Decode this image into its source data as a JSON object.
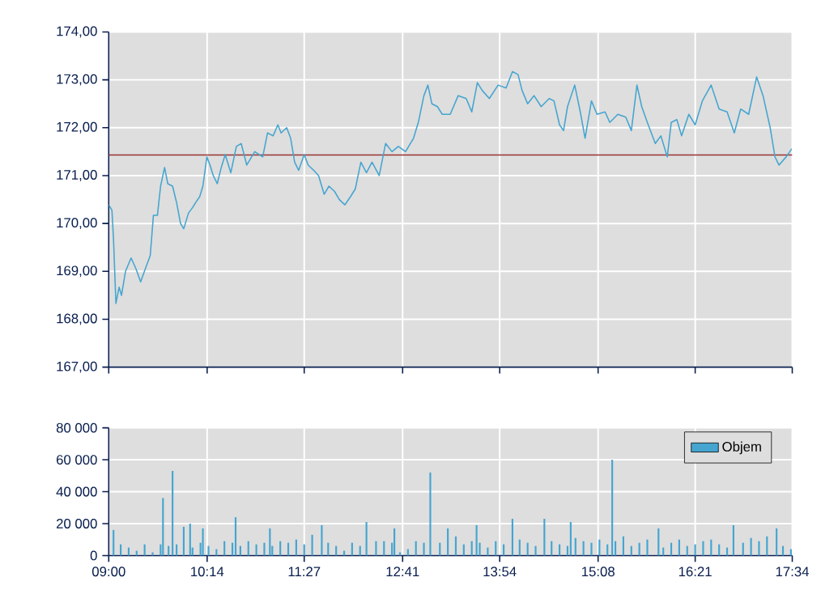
{
  "chart_data": [
    {
      "type": "line",
      "grid": true,
      "tick_labels": "y",
      "xlim": [
        9,
        17.5667
      ],
      "xticks": [
        {
          "value": 9,
          "label": null
        },
        {
          "value": 10.2333,
          "label": null
        },
        {
          "value": 11.45,
          "label": null
        },
        {
          "value": 12.6833,
          "label": null
        },
        {
          "value": 13.9,
          "label": null
        },
        {
          "value": 15.1333,
          "label": null
        },
        {
          "value": 16.35,
          "label": null
        },
        {
          "value": 17.5667,
          "label": null
        }
      ],
      "ylim": [
        167,
        174
      ],
      "yticks": [
        {
          "value": 167,
          "label": "167,00"
        },
        {
          "value": 168,
          "label": "168,00"
        },
        {
          "value": 169,
          "label": "169,00"
        },
        {
          "value": 170,
          "label": "170,00"
        },
        {
          "value": 171,
          "label": "171,00"
        },
        {
          "value": 172,
          "label": "172,00"
        },
        {
          "value": 173,
          "label": "173,00"
        },
        {
          "value": 174,
          "label": "174,00"
        }
      ],
      "ref_lines": [
        {
          "axis": "y",
          "value": 171.43,
          "color": "#993333"
        }
      ],
      "series": [
        {
          "color": "#45a5d0",
          "x": [
            9.0,
            9.04,
            9.06,
            9.09,
            9.13,
            9.16,
            9.21,
            9.28,
            9.34,
            9.4,
            9.46,
            9.52,
            9.56,
            9.61,
            9.65,
            9.7,
            9.74,
            9.8,
            9.85,
            9.9,
            9.94,
            10.0,
            10.05,
            10.09,
            10.14,
            10.18,
            10.23,
            10.27,
            10.31,
            10.36,
            10.41,
            10.46,
            10.53,
            10.6,
            10.66,
            10.73,
            10.83,
            10.93,
            10.99,
            11.06,
            11.12,
            11.16,
            11.23,
            11.28,
            11.33,
            11.38,
            11.45,
            11.5,
            11.57,
            11.63,
            11.7,
            11.76,
            11.83,
            11.89,
            11.96,
            12.03,
            12.09,
            12.16,
            12.23,
            12.3,
            12.39,
            12.47,
            12.55,
            12.63,
            12.72,
            12.82,
            12.88,
            12.95,
            13.0,
            13.05,
            13.12,
            13.18,
            13.28,
            13.38,
            13.48,
            13.55,
            13.62,
            13.68,
            13.77,
            13.88,
            13.98,
            14.06,
            14.13,
            14.18,
            14.25,
            14.33,
            14.42,
            14.52,
            14.58,
            14.65,
            14.7,
            14.75,
            14.84,
            14.91,
            14.97,
            15.05,
            15.12,
            15.22,
            15.28,
            15.38,
            15.48,
            15.55,
            15.62,
            15.68,
            15.75,
            15.85,
            15.92,
            16.0,
            16.05,
            16.12,
            16.18,
            16.27,
            16.35,
            16.44,
            16.55,
            16.65,
            16.75,
            16.84,
            16.92,
            17.02,
            17.12,
            17.2,
            17.29,
            17.35,
            17.4,
            17.49,
            17.56
          ],
          "values": [
            170.39,
            170.28,
            169.67,
            168.33,
            168.67,
            168.5,
            169.0,
            169.28,
            169.06,
            168.78,
            169.06,
            169.33,
            170.17,
            170.17,
            170.78,
            171.17,
            170.83,
            170.78,
            170.44,
            170.0,
            169.89,
            170.22,
            170.33,
            170.44,
            170.56,
            170.78,
            171.39,
            171.22,
            171.0,
            170.83,
            171.17,
            171.44,
            171.06,
            171.61,
            171.67,
            171.22,
            171.5,
            171.39,
            171.89,
            171.83,
            172.06,
            171.89,
            172.0,
            171.78,
            171.28,
            171.11,
            171.44,
            171.22,
            171.11,
            171.0,
            170.61,
            170.78,
            170.67,
            170.5,
            170.39,
            170.56,
            170.72,
            171.28,
            171.06,
            171.28,
            171.0,
            171.67,
            171.5,
            171.61,
            171.5,
            171.78,
            172.11,
            172.67,
            172.89,
            172.5,
            172.44,
            172.28,
            172.28,
            172.67,
            172.61,
            172.33,
            172.94,
            172.78,
            172.61,
            172.89,
            172.83,
            173.17,
            173.11,
            172.78,
            172.5,
            172.67,
            172.44,
            172.61,
            172.56,
            172.06,
            171.94,
            172.44,
            172.89,
            172.33,
            171.78,
            172.56,
            172.28,
            172.33,
            172.11,
            172.28,
            172.22,
            171.94,
            172.89,
            172.44,
            172.11,
            171.67,
            171.83,
            171.39,
            172.11,
            172.17,
            171.83,
            172.28,
            172.06,
            172.56,
            172.89,
            172.39,
            172.33,
            171.89,
            172.39,
            172.28,
            173.06,
            172.67,
            172.0,
            171.39,
            171.22,
            171.39,
            171.56
          ]
        }
      ]
    },
    {
      "type": "bar",
      "grid": true,
      "legend": "top right",
      "xlim": [
        9,
        17.5667
      ],
      "xticks": [
        {
          "value": 9,
          "label": "09:00"
        },
        {
          "value": 10.2333,
          "label": "10:14"
        },
        {
          "value": 11.45,
          "label": "11:27"
        },
        {
          "value": 12.6833,
          "label": "12:41"
        },
        {
          "value": 13.9,
          "label": "13:54"
        },
        {
          "value": 15.1333,
          "label": "15:08"
        },
        {
          "value": 16.35,
          "label": "16:21"
        },
        {
          "value": 17.5667,
          "label": "17:34"
        }
      ],
      "ylim": [
        0,
        80000
      ],
      "yticks": [
        0,
        {
          "value": 20000,
          "label": "20 000"
        },
        {
          "value": 40000,
          "label": "40 000"
        },
        {
          "value": 60000,
          "label": "60 000"
        },
        {
          "value": 80000,
          "label": "80 000"
        }
      ],
      "series": [
        {
          "name": "Objem",
          "color": "#45a5d0",
          "x": [
            9.06,
            9.15,
            9.25,
            9.35,
            9.45,
            9.55,
            9.65,
            9.68,
            9.75,
            9.8,
            9.85,
            9.94,
            10.02,
            10.05,
            10.15,
            10.18,
            10.25,
            10.35,
            10.45,
            10.55,
            10.59,
            10.65,
            10.75,
            10.85,
            10.95,
            11.02,
            11.05,
            11.15,
            11.25,
            11.35,
            11.45,
            11.55,
            11.67,
            11.75,
            11.85,
            11.95,
            12.05,
            12.15,
            12.23,
            12.35,
            12.45,
            12.55,
            12.58,
            12.65,
            12.75,
            12.85,
            12.95,
            13.03,
            13.15,
            13.25,
            13.35,
            13.45,
            13.55,
            13.61,
            13.65,
            13.75,
            13.85,
            13.95,
            14.06,
            14.15,
            14.25,
            14.35,
            14.46,
            14.55,
            14.65,
            14.75,
            14.79,
            14.85,
            14.95,
            15.05,
            15.15,
            15.25,
            15.31,
            15.35,
            15.45,
            15.55,
            15.65,
            15.75,
            15.89,
            15.95,
            16.05,
            16.15,
            16.25,
            16.35,
            16.45,
            16.55,
            16.65,
            16.75,
            16.83,
            16.95,
            17.05,
            17.15,
            17.25,
            17.37,
            17.45,
            17.55
          ],
          "values": [
            16000,
            7000,
            5000,
            3000,
            7000,
            2000,
            7000,
            36000,
            6000,
            53000,
            7000,
            18000,
            20000,
            5000,
            8000,
            17000,
            6000,
            4000,
            9000,
            8000,
            24000,
            6000,
            9000,
            7000,
            8000,
            17000,
            6000,
            9000,
            8000,
            10000,
            7000,
            13000,
            19000,
            8000,
            6000,
            3000,
            8000,
            6000,
            21000,
            9000,
            9000,
            8000,
            17000,
            2000,
            4000,
            9000,
            8000,
            52000,
            8000,
            17000,
            12000,
            7000,
            9000,
            19000,
            8000,
            5000,
            9000,
            7000,
            23000,
            10000,
            8000,
            6000,
            23000,
            9000,
            7000,
            6000,
            21000,
            11000,
            9000,
            8000,
            10000,
            7000,
            60000,
            9000,
            12000,
            6000,
            8000,
            10000,
            17000,
            5000,
            8000,
            10000,
            6000,
            7000,
            9000,
            10000,
            7000,
            5000,
            19000,
            8000,
            11000,
            9000,
            12000,
            17000,
            6000,
            4000
          ]
        }
      ]
    }
  ]
}
